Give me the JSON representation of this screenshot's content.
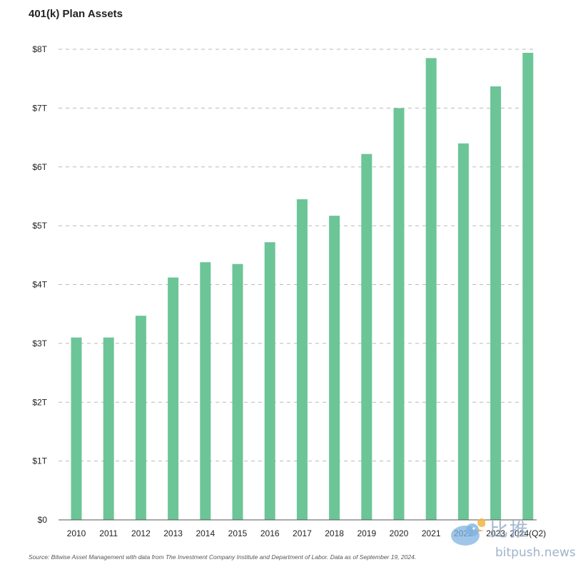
{
  "chart_data": {
    "type": "bar",
    "title": "401(k) Plan Assets",
    "categories": [
      "2010",
      "2011",
      "2012",
      "2013",
      "2014",
      "2015",
      "2016",
      "2017",
      "2018",
      "2019",
      "2020",
      "2021",
      "2022",
      "2023",
      "2024(Q2)"
    ],
    "values": [
      3.1,
      3.1,
      3.47,
      4.12,
      4.38,
      4.35,
      4.72,
      5.45,
      5.17,
      6.22,
      7.0,
      7.85,
      6.4,
      7.37,
      7.94
    ],
    "ylim": [
      0,
      8
    ],
    "yticks": [
      {
        "value": 0,
        "label": "$0"
      },
      {
        "value": 1,
        "label": "$1T"
      },
      {
        "value": 2,
        "label": "$2T"
      },
      {
        "value": 3,
        "label": "$3T"
      },
      {
        "value": 4,
        "label": "$4T"
      },
      {
        "value": 5,
        "label": "$5T"
      },
      {
        "value": 6,
        "label": "$6T"
      },
      {
        "value": 7,
        "label": "$7T"
      },
      {
        "value": 8,
        "label": "$8T"
      }
    ],
    "xlabel": "",
    "ylabel": "",
    "grid": "horizontal-dashed",
    "bar_color": "#6cc597"
  },
  "source": "Source: Bitwise Asset Management with data from The Investment Company Institute and Department of Labor. Data as of September 19, 2024.",
  "watermark": {
    "cn_text": "比推",
    "url_text": "bitpush.news",
    "logo": "bird-logo"
  }
}
